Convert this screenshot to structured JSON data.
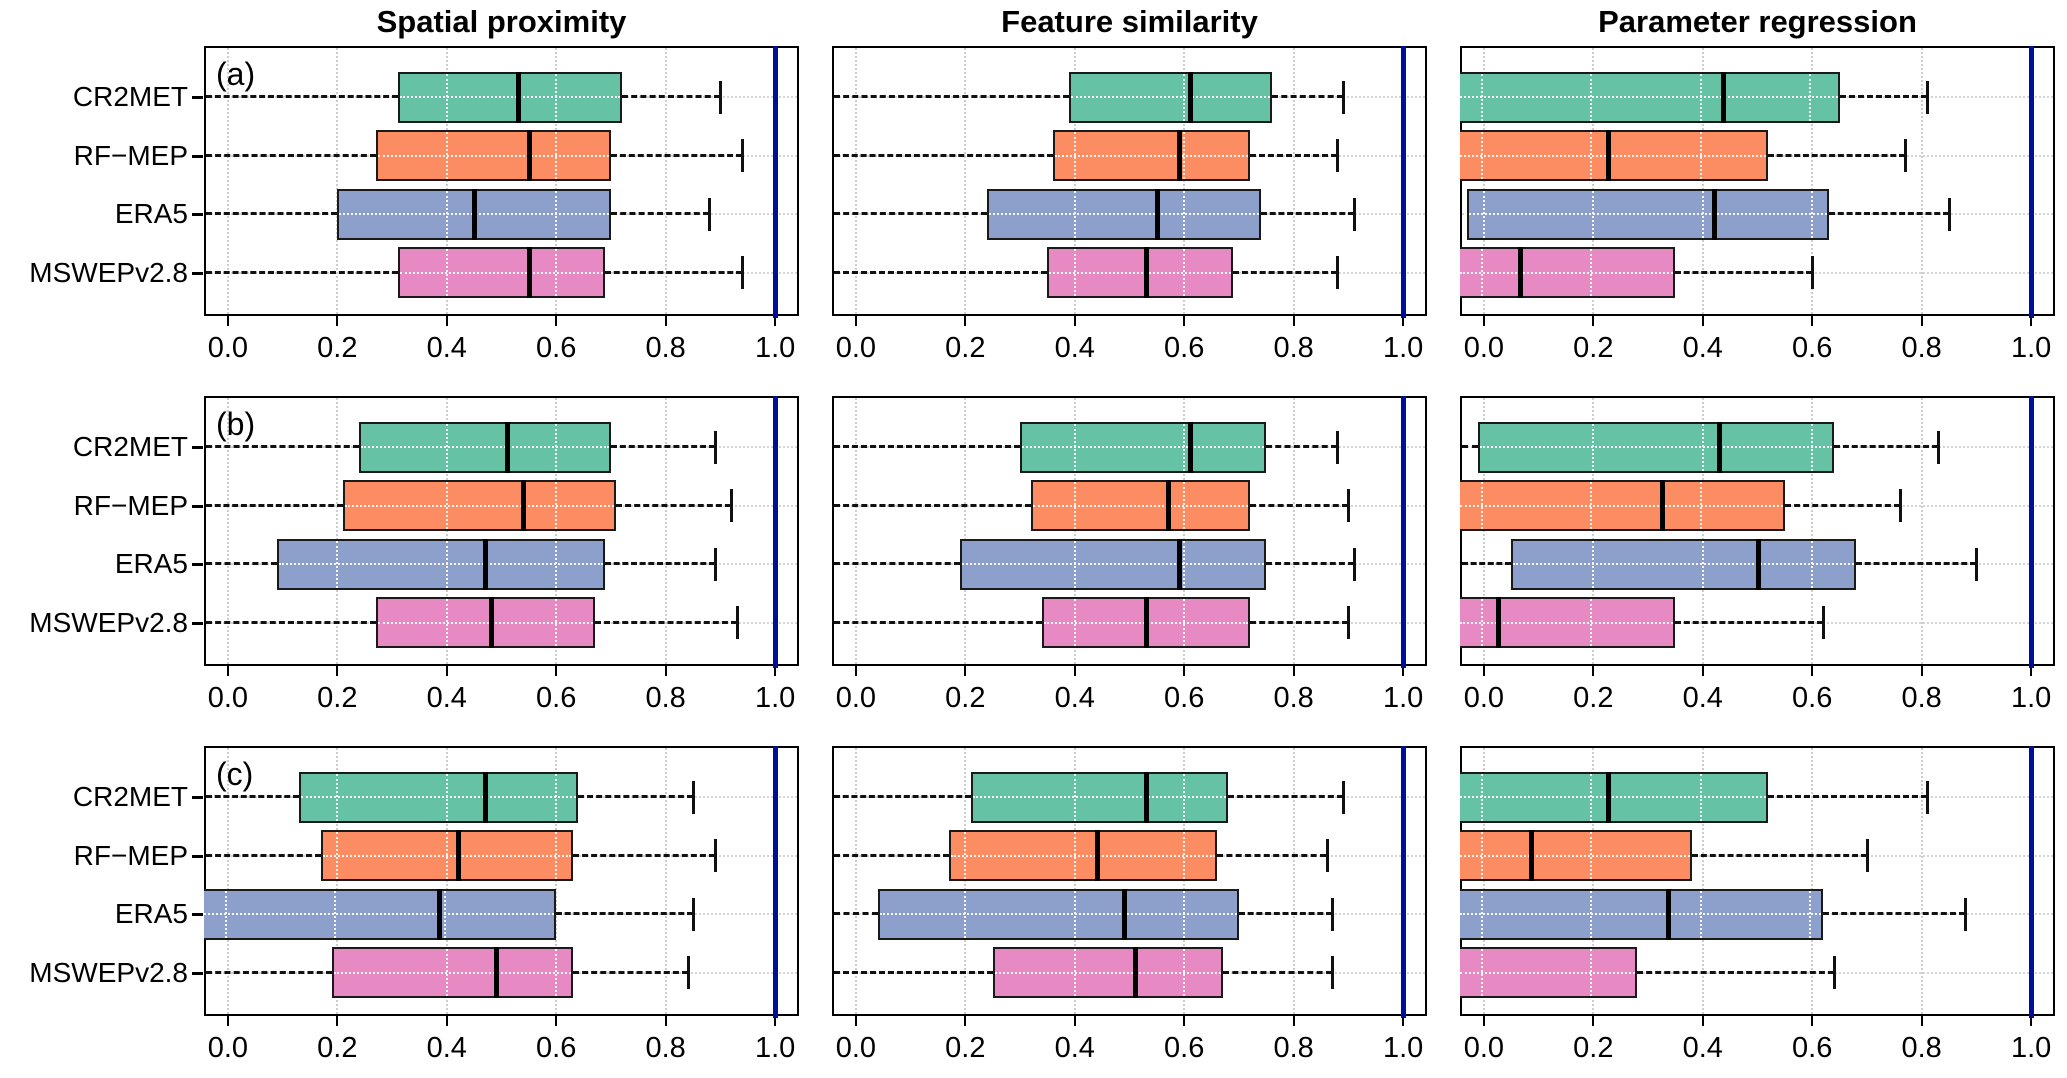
{
  "figure": {
    "column_titles": [
      "Spatial proximity",
      "Feature similarity",
      "Parameter regression"
    ],
    "panel_letters": [
      "(a)",
      "(b)",
      "(c)"
    ],
    "row_labels": [
      "CR2MET",
      "RF−MEP",
      "ERA5",
      "MSWEPv2.8"
    ],
    "axis": {
      "ticks": [
        "0.0",
        "0.2",
        "0.4",
        "0.6",
        "0.8",
        "1.0"
      ],
      "tick_values": [
        0.0,
        0.2,
        0.4,
        0.6,
        0.8,
        1.0
      ],
      "min": -0.04,
      "max": 1.04,
      "reference_line": 1.0
    },
    "colors": {
      "fills": [
        "#66C2A5",
        "#FC8D62",
        "#8DA0CB",
        "#E78AC3"
      ],
      "reference_line": "#000E9C",
      "box_border": "#1a1a1a",
      "grid": "#cdcdcd"
    }
  },
  "chart_data": [
    {
      "id": "a-spatial-proximity",
      "type": "boxplot-horizontal",
      "row": "a",
      "column": "Spatial proximity",
      "xlim": [
        -0.04,
        1.04
      ],
      "grid": true,
      "series": [
        {
          "name": "CR2MET",
          "q1": 0.31,
          "median": 0.53,
          "q3": 0.72,
          "whisker_high": 0.9,
          "whisker_low": -0.04,
          "whisker_low_clipped": true,
          "q1_clipped": false,
          "median_clipped": false
        },
        {
          "name": "RF-MEP",
          "q1": 0.27,
          "median": 0.55,
          "q3": 0.7,
          "whisker_high": 0.94,
          "whisker_low": -0.04,
          "whisker_low_clipped": true,
          "q1_clipped": false,
          "median_clipped": false
        },
        {
          "name": "ERA5",
          "q1": 0.2,
          "median": 0.45,
          "q3": 0.7,
          "whisker_high": 0.88,
          "whisker_low": -0.04,
          "whisker_low_clipped": true,
          "q1_clipped": false,
          "median_clipped": false
        },
        {
          "name": "MSWEPv2.8",
          "q1": 0.31,
          "median": 0.55,
          "q3": 0.69,
          "whisker_high": 0.94,
          "whisker_low": -0.04,
          "whisker_low_clipped": true,
          "q1_clipped": false,
          "median_clipped": false
        }
      ]
    },
    {
      "id": "a-feature-similarity",
      "type": "boxplot-horizontal",
      "row": "a",
      "column": "Feature similarity",
      "xlim": [
        -0.04,
        1.04
      ],
      "grid": true,
      "series": [
        {
          "name": "CR2MET",
          "q1": 0.39,
          "median": 0.61,
          "q3": 0.76,
          "whisker_high": 0.89,
          "whisker_low": -0.04,
          "whisker_low_clipped": true,
          "q1_clipped": false,
          "median_clipped": false
        },
        {
          "name": "RF-MEP",
          "q1": 0.36,
          "median": 0.59,
          "q3": 0.72,
          "whisker_high": 0.88,
          "whisker_low": -0.04,
          "whisker_low_clipped": true,
          "q1_clipped": false,
          "median_clipped": false
        },
        {
          "name": "ERA5",
          "q1": 0.24,
          "median": 0.55,
          "q3": 0.74,
          "whisker_high": 0.91,
          "whisker_low": -0.04,
          "whisker_low_clipped": true,
          "q1_clipped": false,
          "median_clipped": false
        },
        {
          "name": "MSWEPv2.8",
          "q1": 0.35,
          "median": 0.53,
          "q3": 0.69,
          "whisker_high": 0.88,
          "whisker_low": -0.04,
          "whisker_low_clipped": true,
          "q1_clipped": false,
          "median_clipped": false
        }
      ]
    },
    {
      "id": "a-parameter-regression",
      "type": "boxplot-horizontal",
      "row": "a",
      "column": "Parameter regression",
      "xlim": [
        -0.04,
        1.04
      ],
      "grid": true,
      "series": [
        {
          "name": "CR2MET",
          "q1": -0.04,
          "median": 0.44,
          "q3": 0.65,
          "whisker_high": 0.81,
          "whisker_low": -0.04,
          "whisker_low_clipped": true,
          "q1_clipped": true,
          "median_clipped": false
        },
        {
          "name": "RF-MEP",
          "q1": -0.04,
          "median": 0.23,
          "q3": 0.52,
          "whisker_high": 0.77,
          "whisker_low": -0.04,
          "whisker_low_clipped": true,
          "q1_clipped": true,
          "median_clipped": false
        },
        {
          "name": "ERA5",
          "q1": -0.03,
          "median": 0.42,
          "q3": 0.63,
          "whisker_high": 0.85,
          "whisker_low": -0.04,
          "whisker_low_clipped": true,
          "q1_clipped": false,
          "median_clipped": false
        },
        {
          "name": "MSWEPv2.8",
          "q1": -0.04,
          "median": 0.07,
          "q3": 0.35,
          "whisker_high": 0.6,
          "whisker_low": -0.04,
          "whisker_low_clipped": true,
          "q1_clipped": true,
          "median_clipped": false
        }
      ]
    },
    {
      "id": "b-spatial-proximity",
      "type": "boxplot-horizontal",
      "row": "b",
      "column": "Spatial proximity",
      "xlim": [
        -0.04,
        1.04
      ],
      "grid": true,
      "series": [
        {
          "name": "CR2MET",
          "q1": 0.24,
          "median": 0.51,
          "q3": 0.7,
          "whisker_high": 0.89,
          "whisker_low": -0.04,
          "whisker_low_clipped": true,
          "q1_clipped": false,
          "median_clipped": false
        },
        {
          "name": "RF-MEP",
          "q1": 0.21,
          "median": 0.54,
          "q3": 0.71,
          "whisker_high": 0.92,
          "whisker_low": -0.04,
          "whisker_low_clipped": true,
          "q1_clipped": false,
          "median_clipped": false
        },
        {
          "name": "ERA5",
          "q1": 0.09,
          "median": 0.47,
          "q3": 0.69,
          "whisker_high": 0.89,
          "whisker_low": -0.04,
          "whisker_low_clipped": true,
          "q1_clipped": false,
          "median_clipped": false
        },
        {
          "name": "MSWEPv2.8",
          "q1": 0.27,
          "median": 0.48,
          "q3": 0.67,
          "whisker_high": 0.93,
          "whisker_low": -0.04,
          "whisker_low_clipped": true,
          "q1_clipped": false,
          "median_clipped": false
        }
      ]
    },
    {
      "id": "b-feature-similarity",
      "type": "boxplot-horizontal",
      "row": "b",
      "column": "Feature similarity",
      "xlim": [
        -0.04,
        1.04
      ],
      "grid": true,
      "series": [
        {
          "name": "CR2MET",
          "q1": 0.3,
          "median": 0.61,
          "q3": 0.75,
          "whisker_high": 0.88,
          "whisker_low": -0.04,
          "whisker_low_clipped": true,
          "q1_clipped": false,
          "median_clipped": false
        },
        {
          "name": "RF-MEP",
          "q1": 0.32,
          "median": 0.57,
          "q3": 0.72,
          "whisker_high": 0.9,
          "whisker_low": -0.04,
          "whisker_low_clipped": true,
          "q1_clipped": false,
          "median_clipped": false
        },
        {
          "name": "ERA5",
          "q1": 0.19,
          "median": 0.59,
          "q3": 0.75,
          "whisker_high": 0.91,
          "whisker_low": -0.04,
          "whisker_low_clipped": true,
          "q1_clipped": false,
          "median_clipped": false
        },
        {
          "name": "MSWEPv2.8",
          "q1": 0.34,
          "median": 0.53,
          "q3": 0.72,
          "whisker_high": 0.9,
          "whisker_low": -0.04,
          "whisker_low_clipped": true,
          "q1_clipped": false,
          "median_clipped": false
        }
      ]
    },
    {
      "id": "b-parameter-regression",
      "type": "boxplot-horizontal",
      "row": "b",
      "column": "Parameter regression",
      "xlim": [
        -0.04,
        1.04
      ],
      "grid": true,
      "series": [
        {
          "name": "CR2MET",
          "q1": -0.01,
          "median": 0.43,
          "q3": 0.64,
          "whisker_high": 0.83,
          "whisker_low": -0.04,
          "whisker_low_clipped": true,
          "q1_clipped": false,
          "median_clipped": false
        },
        {
          "name": "RF-MEP",
          "q1": -0.04,
          "median": 0.33,
          "q3": 0.55,
          "whisker_high": 0.76,
          "whisker_low": -0.04,
          "whisker_low_clipped": true,
          "q1_clipped": true,
          "median_clipped": false
        },
        {
          "name": "ERA5",
          "q1": 0.05,
          "median": 0.5,
          "q3": 0.68,
          "whisker_high": 0.9,
          "whisker_low": -0.04,
          "whisker_low_clipped": true,
          "q1_clipped": false,
          "median_clipped": false
        },
        {
          "name": "MSWEPv2.8",
          "q1": -0.04,
          "median": 0.03,
          "q3": 0.35,
          "whisker_high": 0.62,
          "whisker_low": -0.04,
          "whisker_low_clipped": true,
          "q1_clipped": true,
          "median_clipped": false
        }
      ]
    },
    {
      "id": "c-spatial-proximity",
      "type": "boxplot-horizontal",
      "row": "c",
      "column": "Spatial proximity",
      "xlim": [
        -0.04,
        1.04
      ],
      "grid": true,
      "series": [
        {
          "name": "CR2MET",
          "q1": 0.13,
          "median": 0.47,
          "q3": 0.64,
          "whisker_high": 0.85,
          "whisker_low": -0.04,
          "whisker_low_clipped": true,
          "q1_clipped": false,
          "median_clipped": false
        },
        {
          "name": "RF-MEP",
          "q1": 0.17,
          "median": 0.42,
          "q3": 0.63,
          "whisker_high": 0.89,
          "whisker_low": -0.04,
          "whisker_low_clipped": true,
          "q1_clipped": false,
          "median_clipped": false
        },
        {
          "name": "ERA5",
          "q1": -0.04,
          "median": 0.39,
          "q3": 0.6,
          "whisker_high": 0.85,
          "whisker_low": -0.04,
          "whisker_low_clipped": true,
          "q1_clipped": true,
          "median_clipped": false
        },
        {
          "name": "MSWEPv2.8",
          "q1": 0.19,
          "median": 0.49,
          "q3": 0.63,
          "whisker_high": 0.84,
          "whisker_low": -0.04,
          "whisker_low_clipped": true,
          "q1_clipped": false,
          "median_clipped": false
        }
      ]
    },
    {
      "id": "c-feature-similarity",
      "type": "boxplot-horizontal",
      "row": "c",
      "column": "Feature similarity",
      "xlim": [
        -0.04,
        1.04
      ],
      "grid": true,
      "series": [
        {
          "name": "CR2MET",
          "q1": 0.21,
          "median": 0.53,
          "q3": 0.68,
          "whisker_high": 0.89,
          "whisker_low": -0.04,
          "whisker_low_clipped": true,
          "q1_clipped": false,
          "median_clipped": false
        },
        {
          "name": "RF-MEP",
          "q1": 0.17,
          "median": 0.44,
          "q3": 0.66,
          "whisker_high": 0.86,
          "whisker_low": -0.04,
          "whisker_low_clipped": true,
          "q1_clipped": false,
          "median_clipped": false
        },
        {
          "name": "ERA5",
          "q1": 0.04,
          "median": 0.49,
          "q3": 0.7,
          "whisker_high": 0.87,
          "whisker_low": -0.04,
          "whisker_low_clipped": true,
          "q1_clipped": false,
          "median_clipped": false
        },
        {
          "name": "MSWEPv2.8",
          "q1": 0.25,
          "median": 0.51,
          "q3": 0.67,
          "whisker_high": 0.87,
          "whisker_low": -0.04,
          "whisker_low_clipped": true,
          "q1_clipped": false,
          "median_clipped": false
        }
      ]
    },
    {
      "id": "c-parameter-regression",
      "type": "boxplot-horizontal",
      "row": "c",
      "column": "Parameter regression",
      "xlim": [
        -0.04,
        1.04
      ],
      "grid": true,
      "series": [
        {
          "name": "CR2MET",
          "q1": -0.04,
          "median": 0.23,
          "q3": 0.52,
          "whisker_high": 0.81,
          "whisker_low": -0.04,
          "whisker_low_clipped": true,
          "q1_clipped": true,
          "median_clipped": false
        },
        {
          "name": "RF-MEP",
          "q1": -0.04,
          "median": 0.09,
          "q3": 0.38,
          "whisker_high": 0.7,
          "whisker_low": -0.04,
          "whisker_low_clipped": true,
          "q1_clipped": true,
          "median_clipped": false
        },
        {
          "name": "ERA5",
          "q1": -0.04,
          "median": 0.34,
          "q3": 0.62,
          "whisker_high": 0.88,
          "whisker_low": -0.04,
          "whisker_low_clipped": true,
          "q1_clipped": true,
          "median_clipped": false
        },
        {
          "name": "MSWEPv2.8",
          "q1": -0.04,
          "median": null,
          "q3": 0.28,
          "whisker_high": 0.64,
          "whisker_low": -0.04,
          "whisker_low_clipped": true,
          "q1_clipped": true,
          "median_clipped": true
        }
      ]
    }
  ]
}
